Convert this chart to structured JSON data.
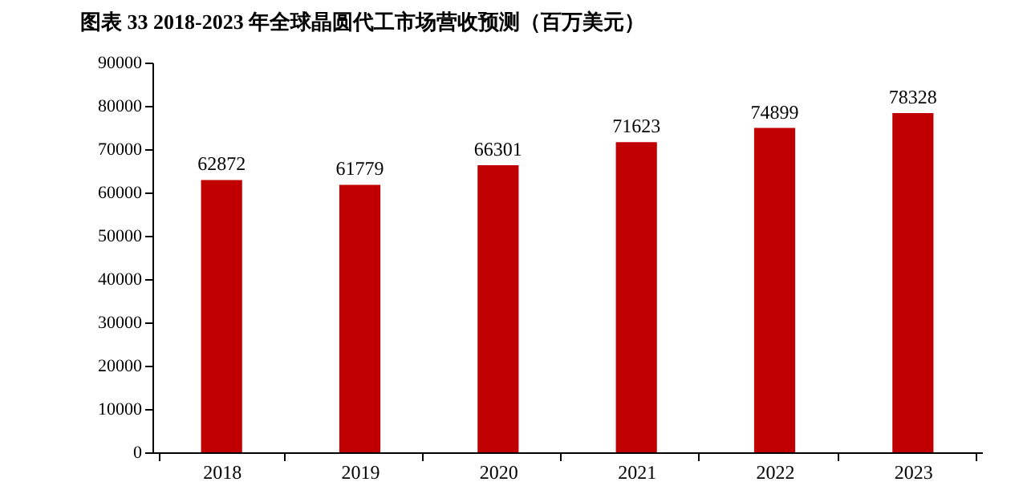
{
  "chart_data": {
    "type": "bar",
    "title": "图表 33  2018-2023 年全球晶圆代工市场营收预测（百万美元）",
    "categories": [
      "2018",
      "2019",
      "2020",
      "2021",
      "2022",
      "2023"
    ],
    "values": [
      62872,
      61779,
      66301,
      71623,
      74899,
      78328
    ],
    "color": "#c00000",
    "data_labels": true,
    "grid": false,
    "ylim": [
      0,
      90000
    ],
    "yticks": [
      0,
      10000,
      20000,
      30000,
      40000,
      50000,
      60000,
      70000,
      80000,
      90000
    ]
  }
}
